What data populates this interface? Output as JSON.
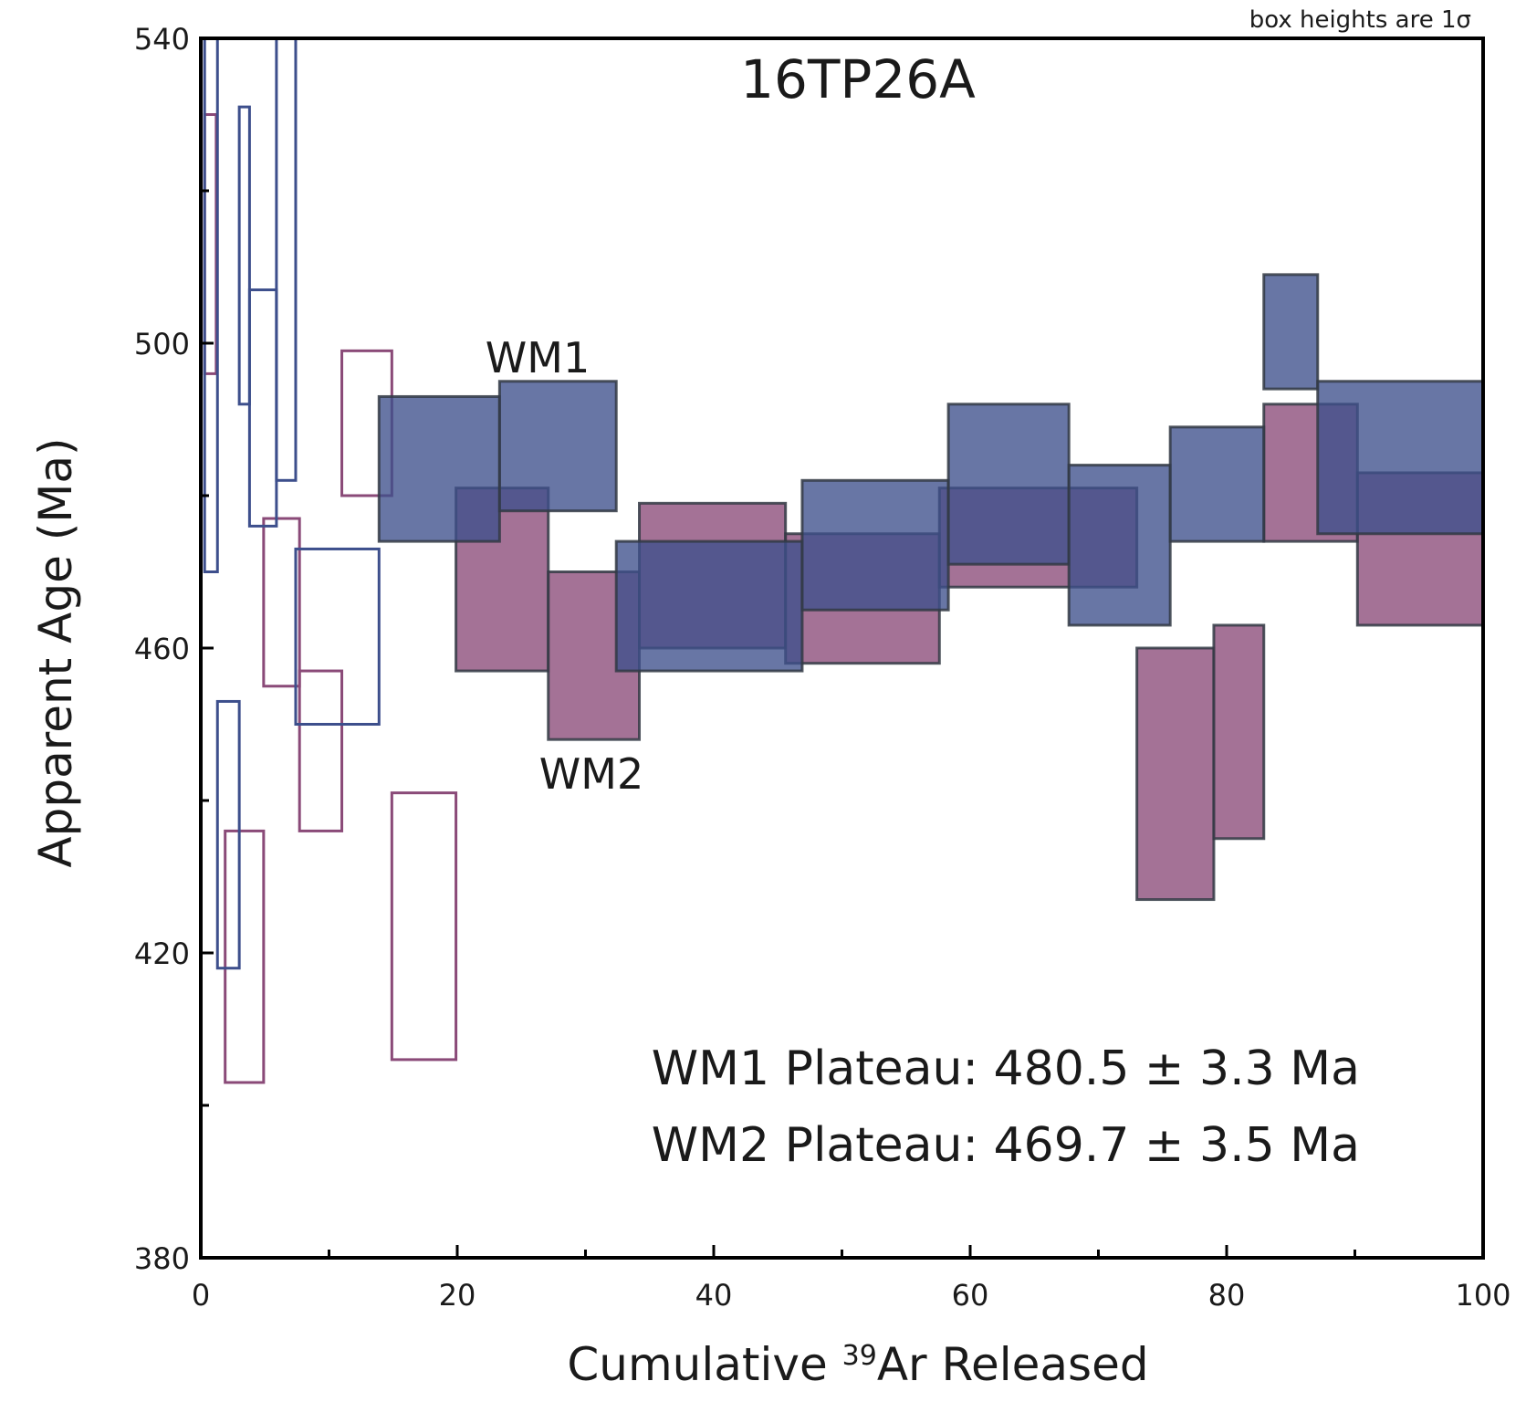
{
  "chart_data": {
    "type": "step-spectrum",
    "title": "16TP26A",
    "note": "box heights are 1σ",
    "xlabel_prefix": "Cumulative ",
    "xlabel_sup": "39",
    "xlabel_suffix": "Ar Released",
    "ylabel": "Apparent Age (Ma)",
    "xlim": [
      0,
      100
    ],
    "ylim": [
      380,
      540
    ],
    "x_ticks": [
      0,
      20,
      40,
      60,
      80,
      100
    ],
    "y_ticks": [
      380,
      420,
      460,
      500,
      540
    ],
    "x_minor_ticks": [
      10,
      30,
      50,
      70,
      90
    ],
    "y_minor_ticks": [
      400,
      440,
      480,
      520
    ],
    "plateaus": [
      "WM1 Plateau: 480.5 ± 3.3 Ma",
      "WM2 Plateau: 469.7 ± 3.5 Ma"
    ],
    "series": [
      {
        "name": "WM1",
        "color": "#3d4f8c",
        "steps": [
          {
            "x0": 0.3,
            "x1": 1.3,
            "lo": 470,
            "hi": 540,
            "filled": false
          },
          {
            "x0": 1.3,
            "x1": 3.0,
            "lo": 418,
            "hi": 453,
            "filled": false
          },
          {
            "x0": 3.0,
            "x1": 3.8,
            "lo": 492,
            "hi": 531,
            "filled": false
          },
          {
            "x0": 3.8,
            "x1": 5.9,
            "lo": 476,
            "hi": 507,
            "filled": false
          },
          {
            "x0": 5.9,
            "x1": 7.4,
            "lo": 482,
            "hi": 540,
            "filled": false
          },
          {
            "x0": 7.4,
            "x1": 13.9,
            "lo": 450,
            "hi": 473,
            "filled": false
          },
          {
            "x0": 13.9,
            "x1": 23.3,
            "lo": 474,
            "hi": 493,
            "filled": true
          },
          {
            "x0": 23.3,
            "x1": 32.4,
            "lo": 478,
            "hi": 495,
            "filled": true
          },
          {
            "x0": 32.4,
            "x1": 46.9,
            "lo": 457,
            "hi": 474,
            "filled": true
          },
          {
            "x0": 46.9,
            "x1": 58.3,
            "lo": 465,
            "hi": 482,
            "filled": true
          },
          {
            "x0": 58.3,
            "x1": 67.7,
            "lo": 471,
            "hi": 492,
            "filled": true
          },
          {
            "x0": 67.7,
            "x1": 75.6,
            "lo": 463,
            "hi": 484,
            "filled": true
          },
          {
            "x0": 75.6,
            "x1": 82.9,
            "lo": 474,
            "hi": 489,
            "filled": true
          },
          {
            "x0": 82.9,
            "x1": 87.1,
            "lo": 494,
            "hi": 509,
            "filled": true
          },
          {
            "x0": 87.1,
            "x1": 100,
            "lo": 475,
            "hi": 495,
            "filled": true
          }
        ]
      },
      {
        "name": "WM2",
        "color": "#8a4a78",
        "steps": [
          {
            "x0": 0.3,
            "x1": 1.2,
            "lo": 496,
            "hi": 530,
            "filled": false
          },
          {
            "x0": 1.9,
            "x1": 4.9,
            "lo": 403,
            "hi": 436,
            "filled": false
          },
          {
            "x0": 4.9,
            "x1": 7.7,
            "lo": 455,
            "hi": 477,
            "filled": false
          },
          {
            "x0": 7.7,
            "x1": 11.0,
            "lo": 436,
            "hi": 457,
            "filled": false
          },
          {
            "x0": 11.0,
            "x1": 14.9,
            "lo": 480,
            "hi": 499,
            "filled": false
          },
          {
            "x0": 14.9,
            "x1": 19.9,
            "lo": 406,
            "hi": 441,
            "filled": false
          },
          {
            "x0": 19.9,
            "x1": 27.1,
            "lo": 457,
            "hi": 481,
            "filled": true
          },
          {
            "x0": 27.1,
            "x1": 34.2,
            "lo": 448,
            "hi": 470,
            "filled": true
          },
          {
            "x0": 34.2,
            "x1": 45.6,
            "lo": 460,
            "hi": 479,
            "filled": true
          },
          {
            "x0": 45.6,
            "x1": 57.6,
            "lo": 458,
            "hi": 475,
            "filled": true
          },
          {
            "x0": 57.6,
            "x1": 73.0,
            "lo": 468,
            "hi": 481,
            "filled": true
          },
          {
            "x0": 73.0,
            "x1": 79.0,
            "lo": 427,
            "hi": 460,
            "filled": true
          },
          {
            "x0": 79.0,
            "x1": 82.9,
            "lo": 435,
            "hi": 463,
            "filled": true
          },
          {
            "x0": 82.9,
            "x1": 90.2,
            "lo": 474,
            "hi": 492,
            "filled": true
          },
          {
            "x0": 90.2,
            "x1": 100,
            "lo": 463,
            "hi": 483,
            "filled": true
          }
        ]
      }
    ]
  }
}
